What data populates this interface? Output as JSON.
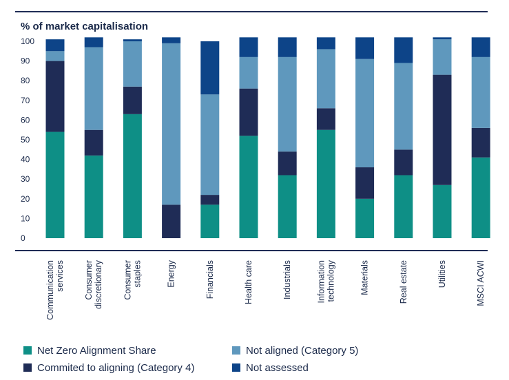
{
  "chart_data": {
    "type": "bar",
    "stacked": true,
    "ylabel": "% of market capitalisation",
    "ylim": [
      0,
      100
    ],
    "yticks": [
      0,
      10,
      20,
      30,
      40,
      50,
      60,
      70,
      80,
      90,
      100
    ],
    "categories": [
      [
        "Communication",
        "services"
      ],
      [
        "Consumer",
        "discretionary"
      ],
      [
        "Consumer",
        "staples"
      ],
      [
        "Energy"
      ],
      [
        "Financials"
      ],
      [
        "Health care"
      ],
      [
        "Industrials"
      ],
      [
        "Information",
        "technology"
      ],
      [
        "Materials"
      ],
      [
        "Real estate"
      ],
      [
        "Utilities"
      ],
      [
        "MSCI ACWI"
      ]
    ],
    "series": [
      {
        "name": "Net Zero Alignment Share",
        "color": "#0e8f86",
        "values": [
          54,
          42,
          63,
          0,
          17,
          52,
          32,
          55,
          20,
          32,
          27,
          41
        ]
      },
      {
        "name": "Commited to aligning (Category 4)",
        "color": "#1f2c56",
        "values": [
          36,
          13,
          14,
          17,
          5,
          24,
          12,
          11,
          16,
          13,
          56,
          15
        ]
      },
      {
        "name": "Not aligned (Category 5)",
        "color": "#5f98bd",
        "values": [
          5,
          42,
          23,
          82,
          51,
          16,
          48,
          30,
          55,
          44,
          18,
          36
        ]
      },
      {
        "name": "Not assessed",
        "color": "#0d4488",
        "values": [
          6,
          5,
          1,
          3,
          27,
          10,
          10,
          6,
          11,
          13,
          1,
          10
        ]
      }
    ],
    "legend": {
      "position": "bottom",
      "items": [
        {
          "label": "Net Zero Alignment Share",
          "series": 0
        },
        {
          "label": "Not aligned (Category 5)",
          "series": 2
        },
        {
          "label": "Commited to aligning (Category 4)",
          "series": 1
        },
        {
          "label": "Not assessed",
          "series": 3
        }
      ]
    },
    "rule_color": "#1f2c56"
  }
}
